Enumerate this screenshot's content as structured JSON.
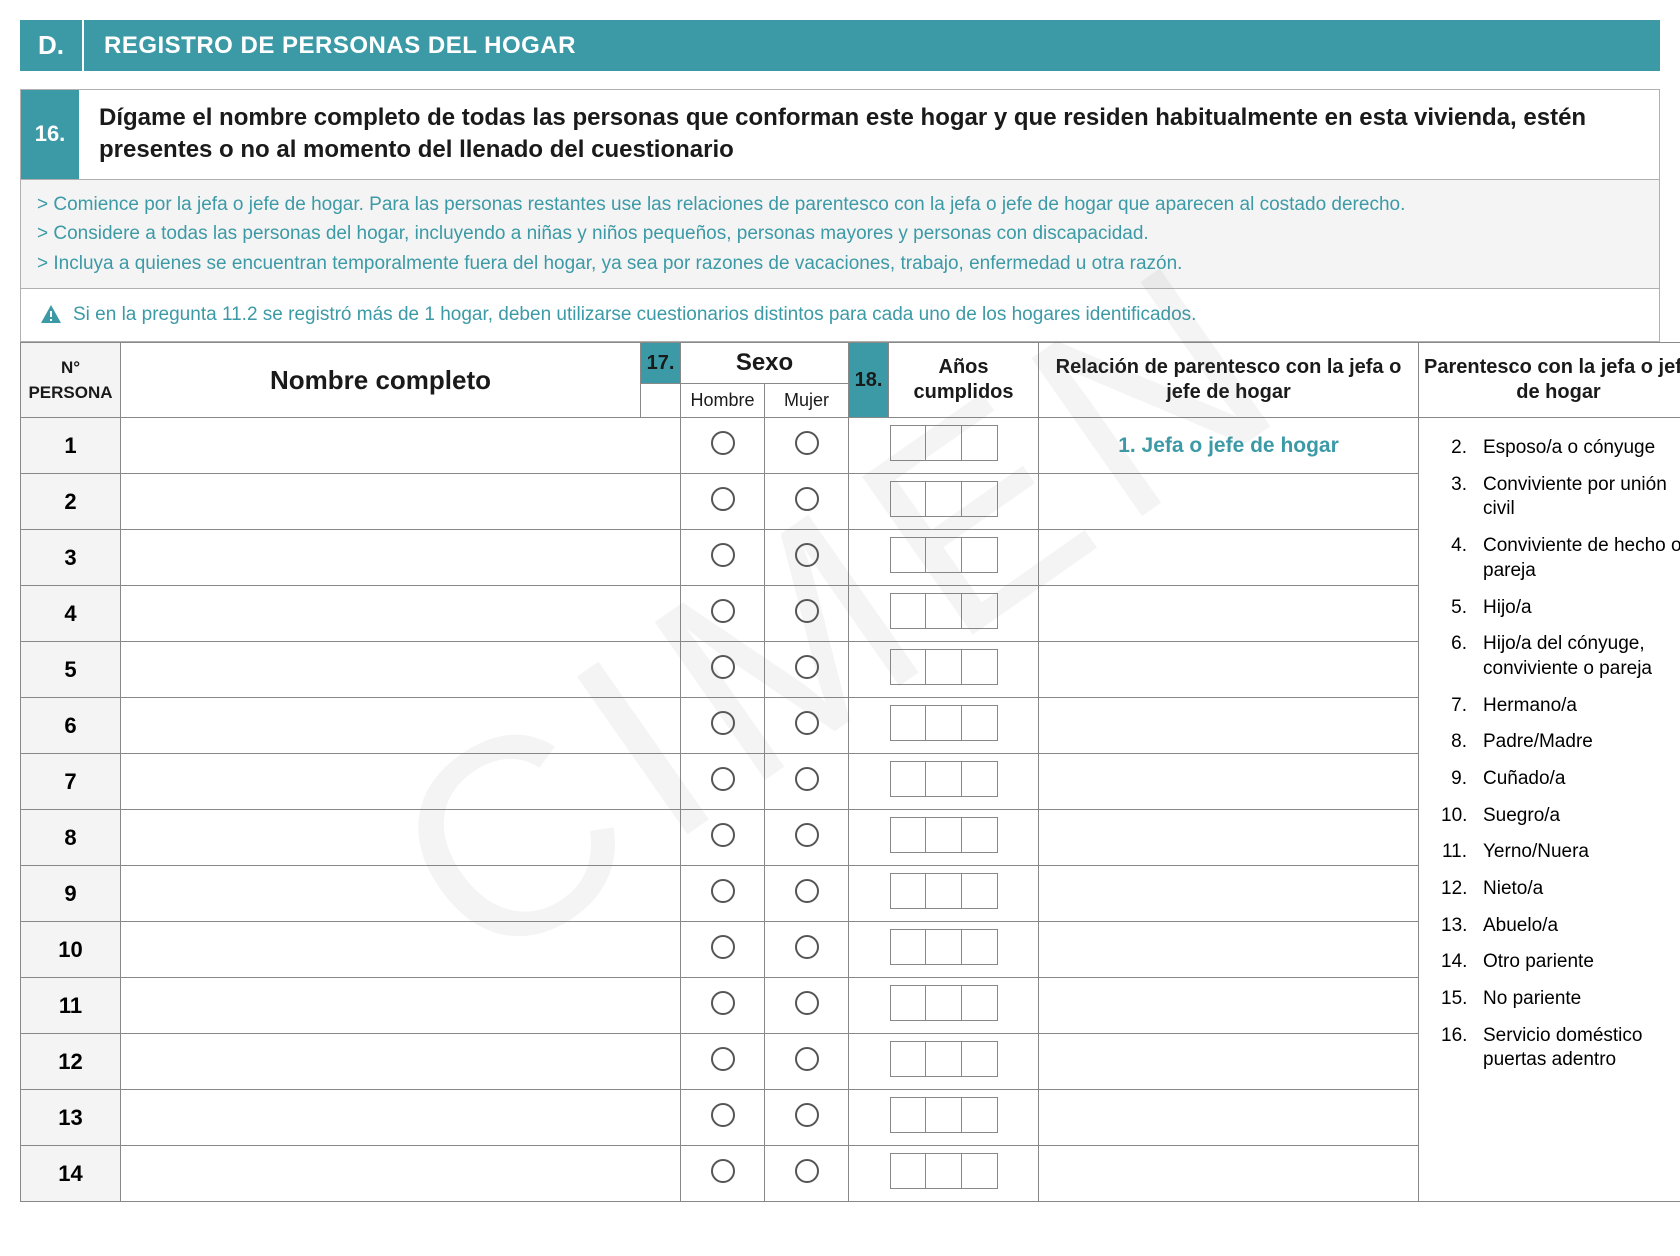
{
  "colors": {
    "teal": "#3c9aa6",
    "text": "#1a1a1a",
    "border": "#888888",
    "panel_bg": "#f4f4f4",
    "watermark": "rgba(120,120,120,0.08)"
  },
  "watermark": "CIMEN",
  "section": {
    "letter": "D.",
    "title": "REGISTRO DE PERSONAS DEL HOGAR"
  },
  "question": {
    "number": "16.",
    "text": "Dígame el nombre completo de todas las personas que conforman este hogar y que residen habitualmente en esta vivienda, estén presentes o no al momento del llenado del cuestionario"
  },
  "instructions": [
    "> Comience por la jefa o jefe de hogar. Para las personas restantes use las relaciones de parentesco con la jefa o jefe de hogar que aparecen al costado derecho.",
    "> Considere a todas las personas del hogar, incluyendo a niñas y niños pequeños, personas mayores y personas con discapacidad.",
    "> Incluya a quienes se encuentran temporalmente fuera del hogar, ya sea por razones de vacaciones, trabajo, enfermedad u otra razón."
  ],
  "warning": "Si en la pregunta 11.2 se registró más de 1 hogar, deben utilizarse cuestionarios distintos para cada uno de los hogares identificados.",
  "headers": {
    "n_persona": "N°\nPERSONA",
    "nombre": "Nombre completo",
    "q17": "17.",
    "sexo": "Sexo",
    "hombre": "Hombre",
    "mujer": "Mujer",
    "q18": "18.",
    "anos": "Años cumplidos",
    "relacion": "Relación de parentesco con la jefa o jefe de hogar",
    "parentesco": "Parentesco con la jefa o jefe de hogar"
  },
  "rows": [
    {
      "n": "1",
      "rel": "1. Jefa o jefe de hogar"
    },
    {
      "n": "2"
    },
    {
      "n": "3"
    },
    {
      "n": "4"
    },
    {
      "n": "5"
    },
    {
      "n": "6"
    },
    {
      "n": "7"
    },
    {
      "n": "8"
    },
    {
      "n": "9"
    },
    {
      "n": "10"
    },
    {
      "n": "11"
    },
    {
      "n": "12"
    },
    {
      "n": "13"
    },
    {
      "n": "14"
    }
  ],
  "relationship_options": [
    {
      "n": "2.",
      "t": "Esposo/a o cónyuge"
    },
    {
      "n": "3.",
      "t": "Conviviente por unión civil"
    },
    {
      "n": "4.",
      "t": "Conviviente de hecho o pareja"
    },
    {
      "n": "5.",
      "t": "Hijo/a"
    },
    {
      "n": "6.",
      "t": "Hijo/a del cónyuge, conviviente o pareja"
    },
    {
      "n": "7.",
      "t": "Hermano/a"
    },
    {
      "n": "8.",
      "t": "Padre/Madre"
    },
    {
      "n": "9.",
      "t": "Cuñado/a"
    },
    {
      "n": "10.",
      "t": "Suegro/a"
    },
    {
      "n": "11.",
      "t": "Yerno/Nuera"
    },
    {
      "n": "12.",
      "t": "Nieto/a"
    },
    {
      "n": "13.",
      "t": "Abuelo/a"
    },
    {
      "n": "14.",
      "t": "Otro pariente"
    },
    {
      "n": "15.",
      "t": "No pariente"
    },
    {
      "n": "16.",
      "t": "Servicio doméstico puertas adentro"
    }
  ]
}
